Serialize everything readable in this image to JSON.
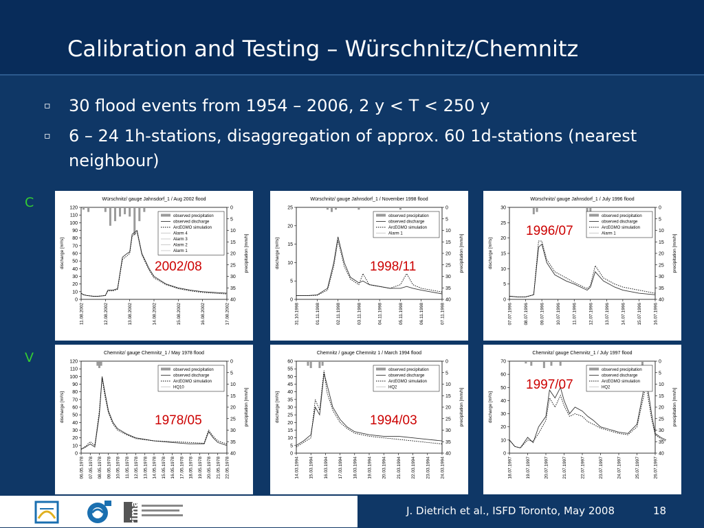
{
  "slide": {
    "title": "Calibration and Testing – Würschnitz/Chemnitz",
    "bullets": [
      "30 flood events from 1954 – 2006, 2 y < T < 250 y",
      "6 – 24 1h-stations, disaggregation of approx. 60 1d-stations (nearest neighbour)"
    ],
    "bullet_marker": "▫",
    "side_labels": {
      "calibration": "C",
      "validation": "V"
    },
    "footer": "J. Dietrich et al., ISFD Toronto, May 2008",
    "page_number": "18",
    "logos": [
      "logo-1",
      "logo-2",
      "rimax-logo"
    ],
    "colors": {
      "background": "#0f3766",
      "title_bar": "#082c5a",
      "side_label": "#33cc33",
      "year_label": "#cc0000"
    }
  },
  "chart_data": [
    {
      "type": "line",
      "title": "Würschnitz/ gauge Jahnsdorf_1 / Aug 2002 flood",
      "event_label": "2002/08",
      "ylabel": "discharge [m³/s]",
      "y2label": "precipitation [mm/h]",
      "ylim": [
        0,
        120
      ],
      "yticks": [
        0,
        10,
        20,
        30,
        40,
        50,
        60,
        70,
        80,
        90,
        100,
        110,
        120
      ],
      "y2lim": [
        0,
        40
      ],
      "y2ticks": [
        0,
        5,
        10,
        15,
        20,
        25,
        30,
        35,
        40
      ],
      "xticks": [
        "11.08.2002",
        "12.08.2002",
        "13.08.2002",
        "14.08.2002",
        "15.08.2002",
        "16.08.2002",
        "17.08.2002"
      ],
      "legend": [
        "observed precipitation",
        "observed discharge",
        "ArcEGMO simulation",
        "Alarm 4",
        "Alarm 3",
        "Alarm 2",
        "Alarm 1"
      ],
      "thresholds": [],
      "x": [
        0,
        0.1,
        0.25,
        0.5,
        0.7,
        1.0,
        1.1,
        1.3,
        1.5,
        1.7,
        1.9,
        2.0,
        2.1,
        2.3,
        2.5,
        2.8,
        3.0,
        3.5,
        4.0,
        4.5,
        5.0,
        5.5,
        6.0
      ],
      "series": [
        {
          "name": "observed discharge",
          "values": [
            8,
            6,
            5,
            4,
            4,
            5,
            12,
            12,
            14,
            55,
            60,
            62,
            85,
            90,
            60,
            40,
            30,
            20,
            15,
            12,
            10,
            9,
            8
          ]
        },
        {
          "name": "ArcEGMO simulation",
          "values": [
            8,
            6,
            5,
            4,
            4,
            5,
            11,
            11,
            13,
            52,
            57,
            60,
            82,
            88,
            58,
            38,
            28,
            19,
            14,
            11,
            9,
            8,
            7
          ]
        }
      ],
      "precip_x": [
        0.1,
        0.3,
        1.0,
        1.2,
        1.4,
        1.6,
        1.8,
        2.0,
        2.2,
        2.4,
        2.6
      ],
      "precip": [
        1,
        2,
        2,
        8,
        6,
        4,
        3,
        4,
        12,
        6,
        2
      ]
    },
    {
      "type": "line",
      "title": "Würschnitz/ gauge Jahnsdorf_1 / November 1998 flood",
      "event_label": "1998/11",
      "ylabel": "discharge [m³/s]",
      "y2label": "precipitation [mm/h]",
      "ylim": [
        0,
        25
      ],
      "yticks": [
        0,
        5,
        10,
        15,
        20,
        25
      ],
      "y2lim": [
        0,
        40
      ],
      "y2ticks": [
        0,
        5,
        10,
        15,
        20,
        25,
        30,
        35,
        40
      ],
      "xticks": [
        "31.10.1998",
        "01.11.1998",
        "02.11.1998",
        "03.11.1998",
        "04.11.1998",
        "05.11.1998",
        "06.11.1998",
        "07.11.1998"
      ],
      "legend": [
        "observed precipitation",
        "observed discharge",
        "ArcEGMO simulation",
        "Alarm 1"
      ],
      "x": [
        0,
        0.5,
        1.0,
        1.5,
        1.8,
        2.0,
        2.3,
        2.6,
        3.0,
        3.2,
        3.5,
        4.0,
        4.5,
        5.0,
        5.3,
        5.6,
        6.0,
        6.5,
        7.0
      ],
      "series": [
        {
          "name": "observed discharge",
          "values": [
            1,
            1,
            1.2,
            3,
            10,
            17,
            10,
            6,
            4.5,
            5,
            4,
            3.5,
            3,
            3,
            3.5,
            3,
            2.5,
            2,
            1.5
          ]
        },
        {
          "name": "ArcEGMO simulation",
          "values": [
            1,
            1,
            1.1,
            2.5,
            9,
            16,
            9,
            5.5,
            4,
            7,
            4,
            3.5,
            3,
            4,
            7,
            4,
            3,
            2.5,
            2
          ]
        }
      ],
      "precip_x": [
        1.5,
        1.7,
        1.9,
        3.0,
        5.0
      ],
      "precip": [
        1,
        2,
        1,
        1,
        1
      ]
    },
    {
      "type": "line",
      "title": "Würschnitz/ gauge Jahnsdorf_1 / July 1996 flood",
      "event_label": "1996/07",
      "ylabel": "discharge [m³/s]",
      "y2label": "precipitation [mm/h]",
      "ylim": [
        0,
        30
      ],
      "yticks": [
        0,
        5,
        10,
        15,
        20,
        25,
        30
      ],
      "y2lim": [
        0,
        40
      ],
      "y2ticks": [
        0,
        5,
        10,
        15,
        20,
        25,
        30,
        35,
        40
      ],
      "xticks": [
        "07.07.1996",
        "08.07.1996",
        "09.07.1996",
        "10.07.1996",
        "11.07.1996",
        "12.07.1996",
        "13.07.1996",
        "14.07.1996",
        "15.07.1996",
        "16.07.1996"
      ],
      "legend": [
        "observed precipitation",
        "observed discharge",
        "ArcEGMO simulation",
        "Alarm 1"
      ],
      "x": [
        0,
        0.5,
        1.0,
        1.5,
        1.8,
        2.0,
        2.3,
        2.8,
        3.5,
        4.0,
        4.8,
        5.0,
        5.3,
        5.8,
        6.5,
        7.0,
        8.0,
        9.0
      ],
      "series": [
        {
          "name": "observed discharge",
          "values": [
            1,
            0.8,
            0.8,
            1.5,
            17,
            18,
            12,
            8,
            6,
            5,
            3,
            4,
            9,
            6,
            4,
            3,
            2,
            1.5
          ]
        },
        {
          "name": "ArcEGMO simulation",
          "values": [
            1,
            0.8,
            0.8,
            1.5,
            19,
            19,
            13,
            9,
            7,
            5.5,
            3.5,
            4.5,
            11,
            7,
            5,
            4,
            3,
            2
          ]
        }
      ],
      "precip_x": [
        1.5,
        1.7,
        4.8,
        5.0
      ],
      "precip": [
        3,
        2,
        2,
        3
      ]
    },
    {
      "type": "line",
      "title": "Chemnitz/ gauge Chemnitz_1 / May 1978 flood",
      "event_label": "1978/05",
      "ylabel": "discharge [m³/s]",
      "y2label": "precipitation [mm/h]",
      "ylim": [
        0,
        120
      ],
      "yticks": [
        0,
        10,
        20,
        30,
        40,
        50,
        60,
        70,
        80,
        90,
        100,
        110,
        120
      ],
      "y2lim": [
        0,
        40
      ],
      "y2ticks": [
        0,
        5,
        10,
        15,
        20,
        25,
        30,
        35,
        40
      ],
      "xticks": [
        "06.05.1978",
        "07.05.1978",
        "08.05.1978",
        "09.05.1978",
        "10.05.1978",
        "11.05.1978",
        "12.05.1978",
        "13.05.1978",
        "14.05.1978",
        "15.05.1978",
        "16.05.1978",
        "17.05.1978",
        "18.05.1978",
        "19.05.1978",
        "20.05.1978",
        "21.05.1978",
        "22.05.1978"
      ],
      "legend": [
        "observed precipitation",
        "observed discharge",
        "ArcEGMO simulation",
        "HQ10"
      ],
      "x": [
        0,
        0.5,
        1.0,
        1.5,
        2.0,
        2.3,
        2.6,
        3.0,
        3.5,
        4.0,
        5.0,
        6.0,
        8.0,
        10.0,
        12.0,
        13.5,
        14.0,
        14.5,
        15.0,
        16.0
      ],
      "series": [
        {
          "name": "observed discharge",
          "values": [
            5,
            8,
            12,
            8,
            50,
            100,
            80,
            55,
            40,
            32,
            25,
            20,
            16,
            14,
            12,
            12,
            28,
            20,
            14,
            10
          ]
        },
        {
          "name": "ArcEGMO simulation",
          "values": [
            5,
            9,
            15,
            10,
            55,
            98,
            75,
            52,
            38,
            30,
            24,
            19,
            16,
            15,
            14,
            13,
            30,
            22,
            16,
            12
          ]
        }
      ],
      "precip_x": [
        1.8,
        2.0,
        2.2
      ],
      "precip": [
        2,
        3,
        2
      ]
    },
    {
      "type": "line",
      "title": "Chemnitz / gauge Chemnitz 1 / March 1994 flood",
      "event_label": "1994/03",
      "ylabel": "discharge [m³/s]",
      "y2label": "precipitation [mm/h]",
      "ylim": [
        0,
        60
      ],
      "yticks": [
        0,
        5,
        10,
        15,
        20,
        25,
        30,
        35,
        40,
        45,
        50,
        55,
        60
      ],
      "y2lim": [
        0,
        40
      ],
      "y2ticks": [
        0,
        5,
        10,
        15,
        20,
        25,
        30,
        35,
        40
      ],
      "xticks": [
        "14.03.1994",
        "15.03.1994",
        "16.03.1994",
        "17.03.1994",
        "18.03.1994",
        "19.03.1994",
        "20.03.1994",
        "21.03.1994",
        "22.03.1994",
        "23.03.1994",
        "24.03.1994"
      ],
      "legend": [
        "observed precipitation",
        "observed discharge",
        "ArcEGMO simulation",
        "HQ2"
      ],
      "x": [
        0,
        0.5,
        1.0,
        1.3,
        1.6,
        1.9,
        2.1,
        2.5,
        3.0,
        3.5,
        4.0,
        5.0,
        6.0,
        7.0,
        8.0,
        9.0,
        10.0
      ],
      "series": [
        {
          "name": "observed discharge",
          "values": [
            5,
            8,
            12,
            30,
            25,
            52,
            45,
            30,
            22,
            17,
            14,
            12,
            11,
            11,
            10,
            9,
            8
          ]
        },
        {
          "name": "ArcEGMO simulation",
          "values": [
            4,
            7,
            10,
            35,
            28,
            54,
            40,
            28,
            20,
            16,
            13,
            11,
            10,
            9,
            8,
            7,
            6
          ]
        }
      ],
      "precip_x": [
        0.8,
        1.0,
        1.6,
        1.8
      ],
      "precip": [
        2,
        3,
        3,
        2
      ]
    },
    {
      "type": "line",
      "title": "Chemnitz/ gauge Chemnitz_1 / July 1997 flood",
      "event_label": "1997/07",
      "ylabel": "discharge [m³/s]",
      "y2label": "precipitation [mm/h]",
      "ylim": [
        0,
        70
      ],
      "yticks": [
        0,
        10,
        20,
        30,
        40,
        50,
        60,
        70
      ],
      "y2lim": [
        0,
        40
      ],
      "y2ticks": [
        0,
        5,
        10,
        15,
        20,
        25,
        30,
        35,
        40
      ],
      "xticks": [
        "18.07.1997",
        "19.07.1997",
        "20.07.1997",
        "21.07.1997",
        "22.07.1997",
        "23.07.1997",
        "24.07.1997",
        "25.07.1997",
        "26.07.1997"
      ],
      "legend": [
        "observed precipitation",
        "observed discharge",
        "ArcEGMO simulation",
        "HQ2"
      ],
      "x": [
        0,
        0.3,
        0.6,
        1.0,
        1.3,
        1.6,
        2.0,
        2.2,
        2.5,
        2.8,
        3.0,
        3.3,
        3.6,
        4.0,
        4.3,
        4.6,
        5.0,
        5.5,
        6.0,
        6.5,
        7.0,
        7.5,
        7.8,
        8.0,
        8.3,
        8.6
      ],
      "series": [
        {
          "name": "observed discharge",
          "values": [
            10,
            5,
            4,
            12,
            8,
            20,
            28,
            48,
            42,
            50,
            40,
            30,
            35,
            32,
            28,
            25,
            20,
            18,
            16,
            15,
            22,
            58,
            30,
            15,
            12,
            10
          ]
        },
        {
          "name": "ArcEGMO simulation",
          "values": [
            10,
            5,
            4,
            10,
            9,
            15,
            25,
            42,
            35,
            44,
            36,
            28,
            30,
            28,
            24,
            22,
            19,
            17,
            15,
            14,
            20,
            52,
            26,
            14,
            11,
            9
          ]
        }
      ],
      "precip_x": [
        0.9,
        1.2,
        1.9,
        2.3,
        2.8,
        7.3
      ],
      "precip": [
        1,
        2,
        3,
        2,
        2,
        3
      ]
    }
  ]
}
